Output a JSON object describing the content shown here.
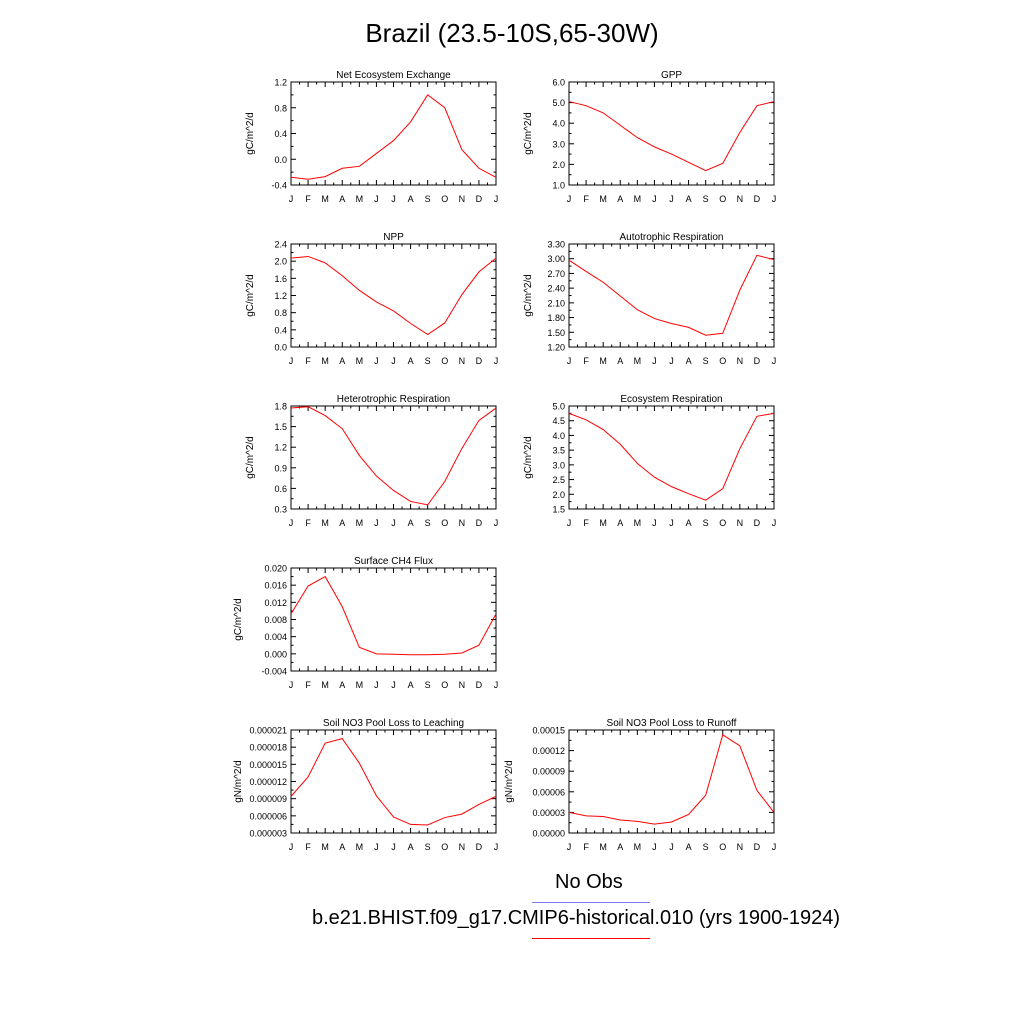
{
  "figure_title": "Brazil (23.5-10S,65-30W)",
  "legend": {
    "obs_label": "No Obs",
    "obs_color": "#7b7bf0",
    "model_label": "b.e21.BHIST.f09_g17.CMIP6-historical.010 (yrs 1900-1924)",
    "model_color": "#ff0000"
  },
  "chart_data": [
    {
      "type": "line",
      "title": "Net Ecosystem Exchange",
      "ylabel": "gC/m^2/d",
      "categories": [
        "J",
        "F",
        "M",
        "A",
        "M",
        "J",
        "J",
        "A",
        "S",
        "O",
        "N",
        "D",
        "J"
      ],
      "yticks": [
        "1.2",
        "0.8",
        "0.4",
        "0.0",
        "-0.4"
      ],
      "ylim": [
        -0.4,
        1.2
      ],
      "series": [
        {
          "values": [
            -0.28,
            -0.31,
            -0.27,
            -0.14,
            -0.11,
            0.09,
            0.29,
            0.58,
            1.0,
            0.8,
            0.15,
            -0.14,
            -0.28
          ],
          "color": "#ff0000"
        }
      ]
    },
    {
      "type": "line",
      "title": "GPP",
      "ylabel": "gC/m^2/d",
      "categories": [
        "J",
        "F",
        "M",
        "A",
        "M",
        "J",
        "J",
        "A",
        "S",
        "O",
        "N",
        "D",
        "J"
      ],
      "yticks": [
        "6.0",
        "5.0",
        "4.0",
        "3.0",
        "2.0",
        "1.0"
      ],
      "ylim": [
        1.0,
        6.0
      ],
      "series": [
        {
          "values": [
            5.05,
            4.85,
            4.5,
            3.9,
            3.3,
            2.85,
            2.5,
            2.1,
            1.7,
            2.05,
            3.55,
            4.85,
            5.05
          ],
          "color": "#ff0000"
        }
      ]
    },
    {
      "type": "line",
      "title": "NPP",
      "ylabel": "gC/m^2/d",
      "categories": [
        "J",
        "F",
        "M",
        "A",
        "M",
        "J",
        "J",
        "A",
        "S",
        "O",
        "N",
        "D",
        "J"
      ],
      "yticks": [
        "2.4",
        "2.0",
        "1.6",
        "1.2",
        "0.8",
        "0.4",
        "0.0"
      ],
      "ylim": [
        0.0,
        2.4
      ],
      "series": [
        {
          "values": [
            2.07,
            2.11,
            1.96,
            1.66,
            1.32,
            1.05,
            0.84,
            0.55,
            0.29,
            0.56,
            1.22,
            1.75,
            2.07
          ],
          "color": "#ff0000"
        }
      ]
    },
    {
      "type": "line",
      "title": "Autotrophic Respiration",
      "ylabel": "gC/m^2/d",
      "categories": [
        "J",
        "F",
        "M",
        "A",
        "M",
        "J",
        "J",
        "A",
        "S",
        "O",
        "N",
        "D",
        "J"
      ],
      "yticks": [
        "3.30",
        "3.00",
        "2.70",
        "2.40",
        "2.10",
        "1.80",
        "1.50",
        "1.20"
      ],
      "ylim": [
        1.2,
        3.3
      ],
      "series": [
        {
          "values": [
            2.97,
            2.74,
            2.52,
            2.24,
            1.96,
            1.78,
            1.68,
            1.6,
            1.44,
            1.48,
            2.36,
            3.07,
            2.98
          ],
          "color": "#ff0000"
        }
      ]
    },
    {
      "type": "line",
      "title": "Heterotrophic Respiration",
      "ylabel": "gC/m^2/d",
      "categories": [
        "J",
        "F",
        "M",
        "A",
        "M",
        "J",
        "J",
        "A",
        "S",
        "O",
        "N",
        "D",
        "J"
      ],
      "yticks": [
        "1.8",
        "1.5",
        "1.2",
        "0.9",
        "0.6",
        "0.3"
      ],
      "ylim": [
        0.3,
        1.8
      ],
      "series": [
        {
          "values": [
            1.77,
            1.79,
            1.66,
            1.47,
            1.08,
            0.78,
            0.57,
            0.41,
            0.36,
            0.7,
            1.18,
            1.59,
            1.77
          ],
          "color": "#ff0000"
        }
      ]
    },
    {
      "type": "line",
      "title": "Ecosystem Respiration",
      "ylabel": "gC/m^2/d",
      "categories": [
        "J",
        "F",
        "M",
        "A",
        "M",
        "J",
        "J",
        "A",
        "S",
        "O",
        "N",
        "D",
        "J"
      ],
      "yticks": [
        "5.0",
        "4.5",
        "4.0",
        "3.5",
        "3.0",
        "2.5",
        "2.0",
        "1.5"
      ],
      "ylim": [
        1.5,
        5.0
      ],
      "series": [
        {
          "values": [
            4.75,
            4.53,
            4.2,
            3.7,
            3.05,
            2.58,
            2.26,
            2.02,
            1.8,
            2.19,
            3.55,
            4.65,
            4.75
          ],
          "color": "#ff0000"
        }
      ]
    },
    {
      "type": "line",
      "title": "Surface CH4 Flux",
      "ylabel": "gC/m^2/d",
      "categories": [
        "J",
        "F",
        "M",
        "A",
        "M",
        "J",
        "J",
        "A",
        "S",
        "O",
        "N",
        "D",
        "J"
      ],
      "yticks": [
        "0.020",
        "0.016",
        "0.012",
        "0.008",
        "0.004",
        "0.000",
        "-0.004"
      ],
      "ylim": [
        -0.004,
        0.02
      ],
      "series": [
        {
          "values": [
            0.0093,
            0.0158,
            0.018,
            0.011,
            0.0015,
            0.0,
            -0.0001,
            -0.0002,
            -0.0002,
            -0.0001,
            0.0002,
            0.002,
            0.0093
          ],
          "color": "#ff0000"
        }
      ]
    },
    {
      "type": "line",
      "title": "Soil NO3 Pool Loss to Leaching",
      "ylabel": "gN/m^2/d",
      "categories": [
        "J",
        "F",
        "M",
        "A",
        "M",
        "J",
        "J",
        "A",
        "S",
        "O",
        "N",
        "D",
        "J"
      ],
      "yticks": [
        "0.000021",
        "0.000018",
        "0.000015",
        "0.000012",
        "0.000009",
        "0.000006",
        "0.000003"
      ],
      "ylim": [
        3e-06,
        2.1e-05
      ],
      "series": [
        {
          "values": [
            9.4e-06,
            1.28e-05,
            1.87e-05,
            1.95e-05,
            1.52e-05,
            9.5e-06,
            5.8e-06,
            4.5e-06,
            4.4e-06,
            5.7e-06,
            6.3e-06,
            8e-06,
            9.4e-06
          ],
          "color": "#ff0000"
        }
      ]
    },
    {
      "type": "line",
      "title": "Soil NO3 Pool Loss to Runoff",
      "ylabel": "gN/m^2/d",
      "categories": [
        "J",
        "F",
        "M",
        "A",
        "M",
        "J",
        "J",
        "A",
        "S",
        "O",
        "N",
        "D",
        "J"
      ],
      "yticks": [
        "0.00015",
        "0.00012",
        "0.00009",
        "0.00006",
        "0.00003",
        "0.00000"
      ],
      "ylim": [
        0.0,
        0.00015
      ],
      "series": [
        {
          "values": [
            3e-05,
            2.5e-05,
            2.4e-05,
            1.9e-05,
            1.7e-05,
            1.3e-05,
            1.6e-05,
            2.7e-05,
            5.5e-05,
            0.000143,
            0.000127,
            6.2e-05,
            3e-05
          ],
          "color": "#ff0000"
        }
      ]
    }
  ]
}
